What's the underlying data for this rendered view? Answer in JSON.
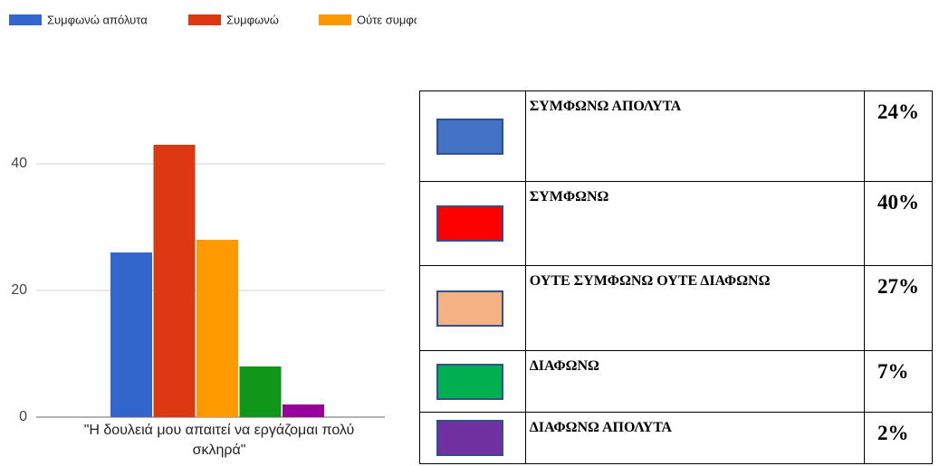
{
  "chart_data": {
    "type": "bar",
    "categories": [
      "\"Η δουλειά μου απαιτεί να εργάζομαι πολύ σκληρά\""
    ],
    "series": [
      {
        "name": "Συμφωνώ απόλυτα",
        "color": "#3366cc",
        "values": [
          26
        ]
      },
      {
        "name": "Συμφωνώ",
        "color": "#dc3912",
        "values": [
          43
        ]
      },
      {
        "name": "Ούτε συμφωνώ ούτε διαφω...",
        "color": "#ff9900",
        "values": [
          28
        ]
      },
      {
        "name": "Διαφωνώ",
        "color": "#109618",
        "values": [
          8
        ]
      },
      {
        "name": "Διαφωνώ απόλυτα",
        "color": "#990099",
        "values": [
          2
        ]
      }
    ],
    "ylim": [
      0,
      43
    ],
    "yticks": [
      0,
      20,
      40
    ],
    "grid": true
  },
  "table": {
    "rows": [
      {
        "color": "#4472c4",
        "label": "ΣΥΜΦΩΝΩ ΑΠΟΛΥΤΑ",
        "percent": "24%"
      },
      {
        "color": "#ff0000",
        "label": "ΣΥΜΦΩΝΩ",
        "percent": "40%"
      },
      {
        "color": "#f4b183",
        "label": "ΟΥΤΕ ΣΥΜΦΩΝΩ ΟΥΤΕ ΔΙΑΦΩΝΩ",
        "percent": "27%"
      },
      {
        "color": "#00b050",
        "label": "ΔΙΑΦΩΝΩ",
        "percent": "7%"
      },
      {
        "color": "#7030a0",
        "label": "ΔΙΑΦΩΝΩ ΑΠΟΛΥΤΑ",
        "percent": "2%"
      }
    ]
  }
}
